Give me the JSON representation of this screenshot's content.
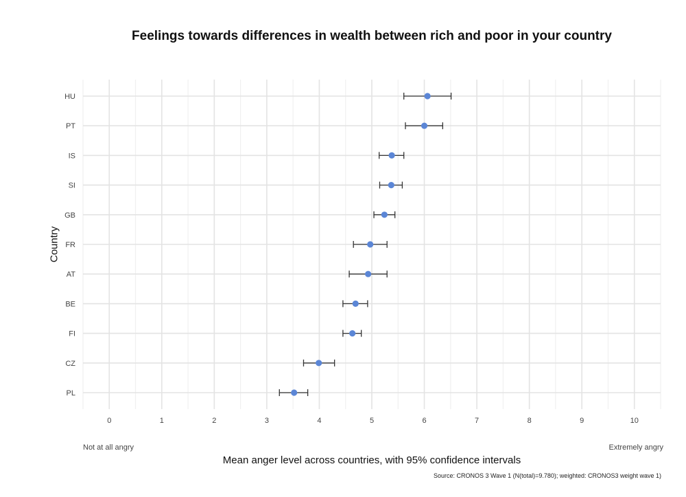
{
  "chart_data": {
    "type": "scatter",
    "title": "Feelings towards differences in wealth between rich and poor in your country",
    "xlabel": "Mean anger level across countries, with 95% confidence intervals",
    "ylabel": "Country",
    "xlim": [
      -0.5,
      10.5
    ],
    "x_ticks": [
      0,
      1,
      2,
      3,
      4,
      5,
      6,
      7,
      8,
      9,
      10
    ],
    "x_anchor_low": "Not at all angry",
    "x_anchor_high": "Extremely angry",
    "source": "Source: CRONOS 3 Wave 1 (N(total)=9.780); weighted: CRONOS3 weight wave 1)",
    "grid": true,
    "point_color": "#5b86d6",
    "errorbar_color": "#333333",
    "categories": [
      "HU",
      "PT",
      "IS",
      "SI",
      "GB",
      "FR",
      "AT",
      "BE",
      "FI",
      "CZ",
      "PL"
    ],
    "means": [
      6.06,
      6.0,
      5.38,
      5.37,
      5.24,
      4.97,
      4.93,
      4.69,
      4.63,
      3.99,
      3.52
    ],
    "ci_low": [
      5.61,
      5.64,
      5.14,
      5.15,
      5.04,
      4.65,
      4.57,
      4.45,
      4.45,
      3.7,
      3.24
    ],
    "ci_high": [
      6.51,
      6.35,
      5.61,
      5.58,
      5.44,
      5.29,
      5.29,
      4.92,
      4.8,
      4.29,
      3.78
    ]
  }
}
